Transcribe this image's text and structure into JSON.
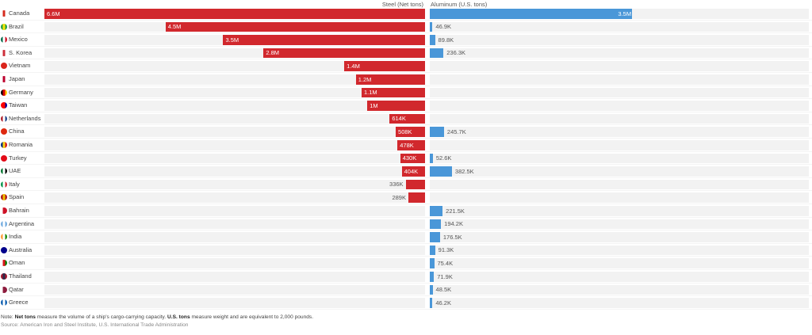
{
  "chart_data": {
    "type": "bar",
    "orientation": "horizontal-diverging",
    "series": [
      {
        "name": "Steel (Net tons)",
        "color": "#d1282d",
        "direction": "left",
        "values": [
          6600000,
          4500000,
          3500000,
          2800000,
          1400000,
          1200000,
          1100000,
          1000000,
          614000,
          508000,
          478000,
          430000,
          404000,
          336000,
          289000,
          null,
          null,
          null,
          null,
          null,
          null,
          null,
          null
        ],
        "labels": [
          "6.6M",
          "4.5M",
          "3.5M",
          "2.8M",
          "1.4M",
          "1.2M",
          "1.1M",
          "1M",
          "614K",
          "508K",
          "478K",
          "430K",
          "404K",
          "336K",
          "289K",
          "",
          "",
          "",
          "",
          "",
          "",
          "",
          ""
        ]
      },
      {
        "name": "Aluminum (U.S. tons)",
        "color": "#4a97d8",
        "direction": "right",
        "values": [
          3500000,
          46900,
          89800,
          236300,
          null,
          null,
          null,
          null,
          null,
          245700,
          null,
          52600,
          382500,
          null,
          null,
          221500,
          194200,
          176500,
          91300,
          75400,
          71900,
          48500,
          46200
        ],
        "labels": [
          "3.5M",
          "46.9K",
          "89.8K",
          "236.3K",
          "",
          "",
          "",
          "",
          "",
          "245.7K",
          "",
          "52.6K",
          "382.5K",
          "",
          "",
          "221.5K",
          "194.2K",
          "176.5K",
          "91.3K",
          "75.4K",
          "71.9K",
          "48.5K",
          "46.2K"
        ]
      }
    ],
    "categories": [
      "Canada",
      "Brazil",
      "Mexico",
      "S. Korea",
      "Vietnam",
      "Japan",
      "Germany",
      "Taiwan",
      "Netherlands",
      "China",
      "Romania",
      "Turkey",
      "UAE",
      "Italy",
      "Spain",
      "Bahrain",
      "Argentina",
      "India",
      "Australia",
      "Oman",
      "Thailand",
      "Qatar",
      "Greece"
    ],
    "steel_max": 6600000,
    "aluminum_max": 6550000,
    "title": "",
    "xlabel": "",
    "ylabel": "",
    "grid": false,
    "legend": "column headers at top-center"
  },
  "headers": {
    "steel": "Steel (Net tons)",
    "aluminum": "Aluminum (U.S. tons)"
  },
  "flags": [
    [
      "#ffffff",
      "#d52b1e",
      "#ffffff"
    ],
    [
      "#229e45",
      "#f8e509",
      "#229e45"
    ],
    [
      "#006847",
      "#ffffff",
      "#ce1126"
    ],
    [
      "#ffffff",
      "#cd2e3a",
      "#ffffff"
    ],
    [
      "#da251d",
      "#da251d",
      "#da251d"
    ],
    [
      "#ffffff",
      "#bc002d",
      "#ffffff"
    ],
    [
      "#000000",
      "#dd0000",
      "#ffce00"
    ],
    [
      "#fe0000",
      "#fe0000",
      "#000095"
    ],
    [
      "#ae1c28",
      "#ffffff",
      "#21468b"
    ],
    [
      "#de2910",
      "#de2910",
      "#de2910"
    ],
    [
      "#002b7f",
      "#fcd116",
      "#ce1126"
    ],
    [
      "#e30a17",
      "#e30a17",
      "#e30a17"
    ],
    [
      "#00732f",
      "#ffffff",
      "#000000"
    ],
    [
      "#009246",
      "#ffffff",
      "#ce2b37"
    ],
    [
      "#aa151b",
      "#f1bf00",
      "#aa151b"
    ],
    [
      "#ffffff",
      "#ce1126",
      "#ce1126"
    ],
    [
      "#74acdf",
      "#ffffff",
      "#74acdf"
    ],
    [
      "#ff9933",
      "#ffffff",
      "#138808"
    ],
    [
      "#00008b",
      "#00008b",
      "#00008b"
    ],
    [
      "#ffffff",
      "#db161b",
      "#008000"
    ],
    [
      "#a51931",
      "#2d2a4a",
      "#a51931"
    ],
    [
      "#ffffff",
      "#8d1b3d",
      "#8d1b3d"
    ],
    [
      "#0d5eaf",
      "#ffffff",
      "#0d5eaf"
    ]
  ],
  "footer": {
    "note_prefix": "Note: ",
    "note_bold1": "Net tons",
    "note_mid": " measure the volume of a ship's cargo-carrying capacity. ",
    "note_bold2": "U.S. tons",
    "note_end": " measure weight and are equivalent to 2,000 pounds.",
    "source": "Source: American Iron and Steel Institute, U.S. International Trade Administration"
  }
}
